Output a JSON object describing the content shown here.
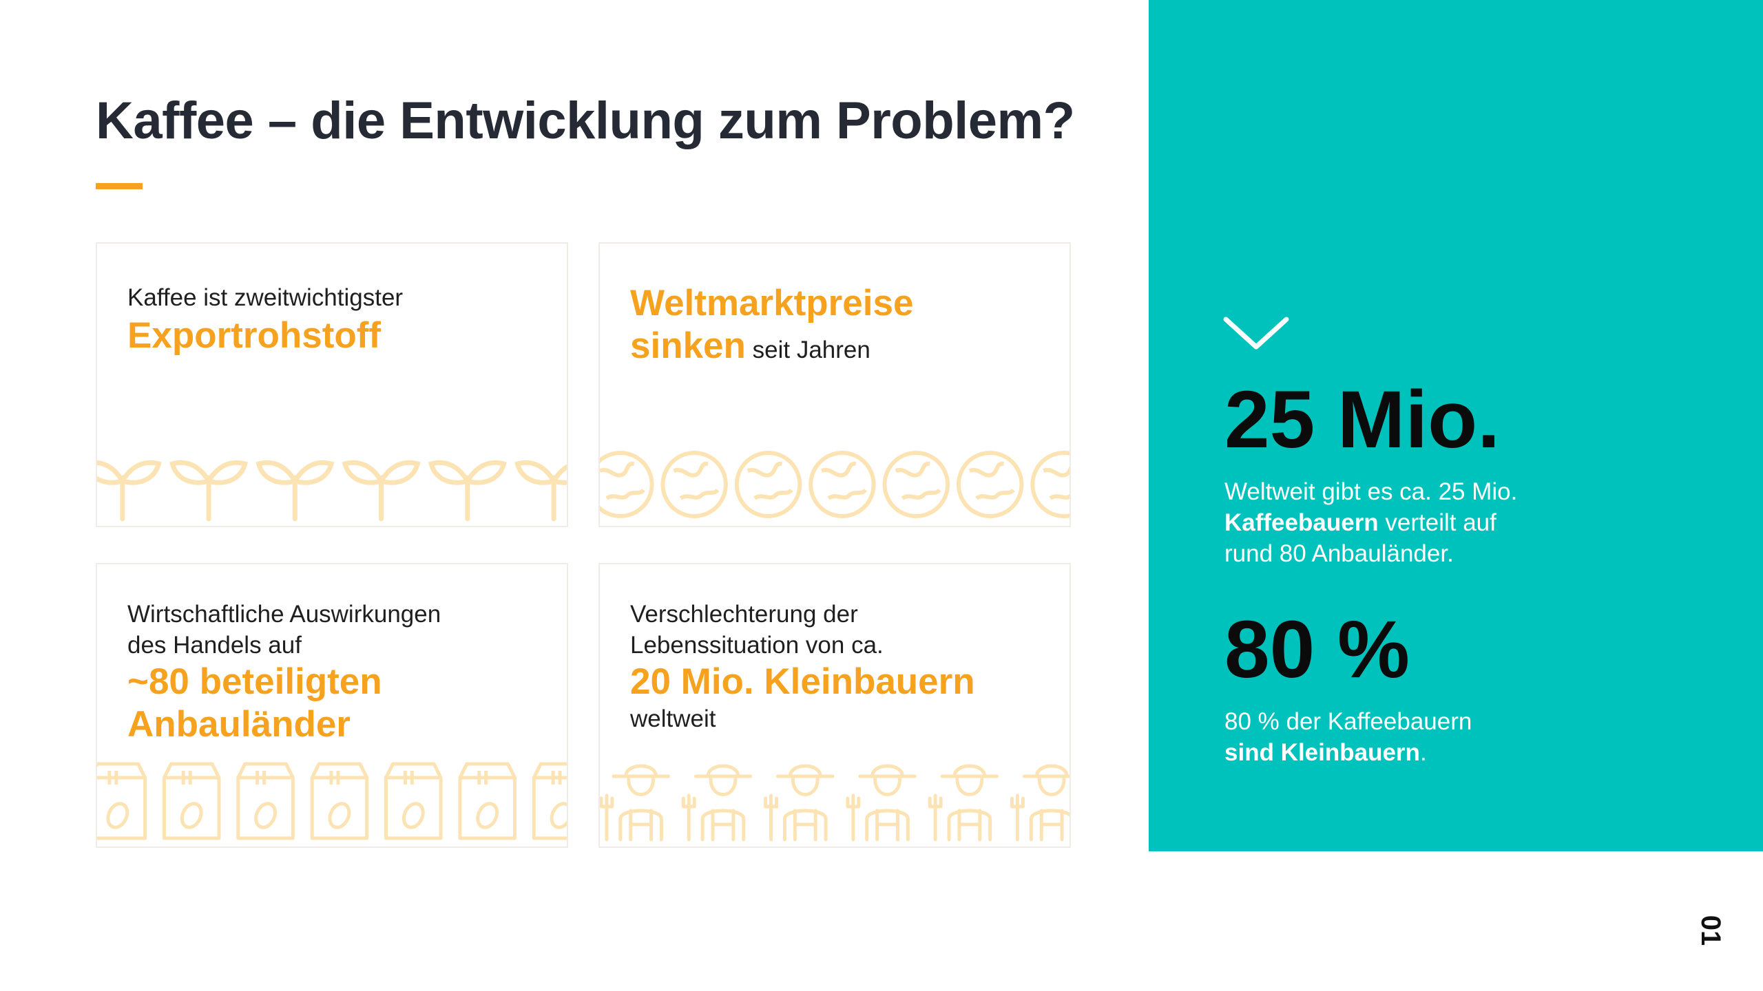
{
  "slide": {
    "title": "Kaffee – die Entwicklung zum Problem?",
    "page_number": "01"
  },
  "cards": [
    {
      "pre": "Kaffee ist zweitwichtigster",
      "highlight": "Exportrohstoff",
      "icon": "plant-sprout-icon"
    },
    {
      "highlight_1": "Weltmarktpreise",
      "highlight_2": "sinken",
      "post": " seit Jahren",
      "icon": "globe-icon"
    },
    {
      "pre_1": "Wirtschaftliche Auswirkungen",
      "pre_2": "des Handels auf",
      "highlight_1": "~80 beteiligten",
      "highlight_2": "Anbauländer",
      "icon": "coffee-bag-icon"
    },
    {
      "pre_1": "Verschlechterung der",
      "pre_2": "Lebenssituation von ca.",
      "highlight": "20 Mio. Kleinbauern",
      "post": "weltweit",
      "icon": "farmer-icon"
    }
  ],
  "stats": [
    {
      "value": "25 Mio.",
      "line1": "Weltweit gibt es ca. 25 Mio.",
      "bold": "Kaffeebauern",
      "line2_rest": " verteilt auf",
      "line3": "rund 80 Anbauländer."
    },
    {
      "value": "80 %",
      "line1": "80 % der Kaffeebauern",
      "bold": "sind Kleinbauern",
      "tail": "."
    }
  ],
  "colors": {
    "accent": "#f6a21e",
    "panel": "#00c2bc",
    "icon_faint": "#fbe3b4",
    "text_dark": "#252a35"
  }
}
